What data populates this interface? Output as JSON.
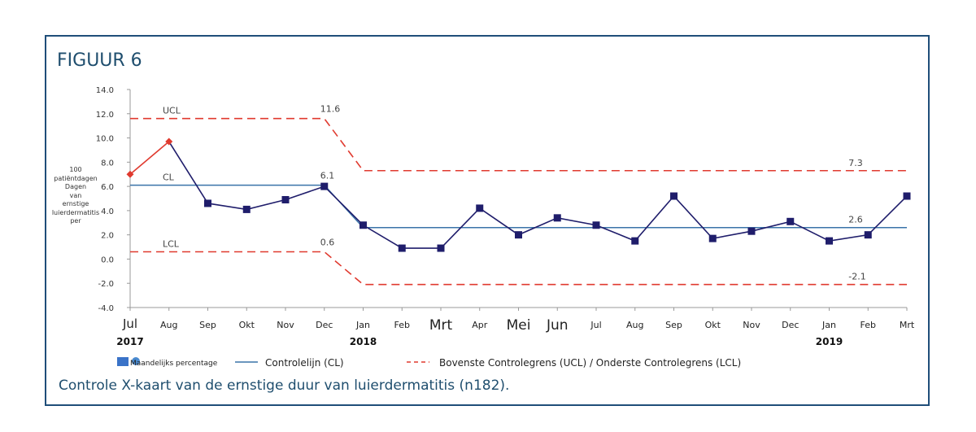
{
  "figure_label": "FIGUUR 6",
  "caption": "Controle X-kaart van de ernstige duur van luierdermatitis (n182).",
  "chart_data": {
    "type": "line",
    "title": "FIGUUR 6",
    "ylabel_lines": [
      "100",
      "patiëntdagen",
      "Dagen",
      "van",
      "ernstige",
      "luierdermatitis",
      "per"
    ],
    "ylim": [
      -4,
      14
    ],
    "yticks": [
      "14.0",
      "12.0",
      "10.0",
      "8.0",
      "6.0",
      "4.0",
      "2.0",
      "0.0",
      "-2.0",
      "-4.0"
    ],
    "ytick_values": [
      14,
      12,
      10,
      8,
      6,
      4,
      2,
      0,
      -2,
      -4
    ],
    "categories": [
      "Jul",
      "Aug",
      "Sep",
      "Okt",
      "Nov",
      "Dec",
      "Jan",
      "Feb",
      "Mrt",
      "Apr",
      "Mei",
      "Jun",
      "Jul",
      "Aug",
      "Sep",
      "Okt",
      "Nov",
      "Dec",
      "Jan",
      "Feb",
      "Mrt"
    ],
    "years": [
      {
        "label": "2017",
        "index": 0
      },
      {
        "label": "2018",
        "index": 6
      },
      {
        "label": "2019",
        "index": 18
      }
    ],
    "series": [
      {
        "name": "Maandelijks percentage",
        "values": [
          7.0,
          9.7,
          4.6,
          4.1,
          4.9,
          6.0,
          2.8,
          0.9,
          0.9,
          4.2,
          2.0,
          3.4,
          2.8,
          1.5,
          5.2,
          1.7,
          2.3,
          3.1,
          1.5,
          2.0,
          5.2
        ],
        "color": "#1f1d6b",
        "highlight_color": "#e03a2f",
        "highlight_upto": 1
      },
      {
        "name": "Controlelijn (CL)",
        "segments": [
          {
            "from": 0,
            "to": 5,
            "value": 6.1
          },
          {
            "from": 6,
            "to": 20,
            "value": 2.6
          }
        ],
        "color": "#3a73a8"
      },
      {
        "name": "UCL",
        "segments": [
          {
            "from": 0,
            "to": 5,
            "value": 11.6
          },
          {
            "from": 6,
            "to": 20,
            "value": 7.3
          }
        ],
        "color": "#e03a2f"
      },
      {
        "name": "LCL",
        "segments": [
          {
            "from": 0,
            "to": 5,
            "value": 0.6
          },
          {
            "from": 6,
            "to": 20,
            "value": -2.1
          }
        ],
        "color": "#e03a2f"
      }
    ],
    "annotations": [
      {
        "text": "UCL",
        "x_index": 1,
        "value": 11.6
      },
      {
        "text": "CL",
        "x_index": 1,
        "value": 6.1
      },
      {
        "text": "LCL",
        "x_index": 1,
        "value": 0.6
      },
      {
        "text": "11.6",
        "x_index": 5,
        "value": 11.6
      },
      {
        "text": "6.1",
        "x_index": 5,
        "value": 6.1
      },
      {
        "text": "0.6",
        "x_index": 5,
        "value": 0.6
      },
      {
        "text": "7.3",
        "x_index": 19,
        "value": 7.3
      },
      {
        "text": "2.6",
        "x_index": 19,
        "value": 2.6
      },
      {
        "text": "-2.1",
        "x_index": 19,
        "value": -2.1
      }
    ],
    "legend": [
      {
        "label": "Maandelijks percentage",
        "style": "marker"
      },
      {
        "label": "Controlelijn (CL)",
        "style": "solid"
      },
      {
        "label": "Bovenste Controlegrens (UCL) / Onderste Controlegrens (LCL)",
        "style": "dashed"
      }
    ]
  }
}
